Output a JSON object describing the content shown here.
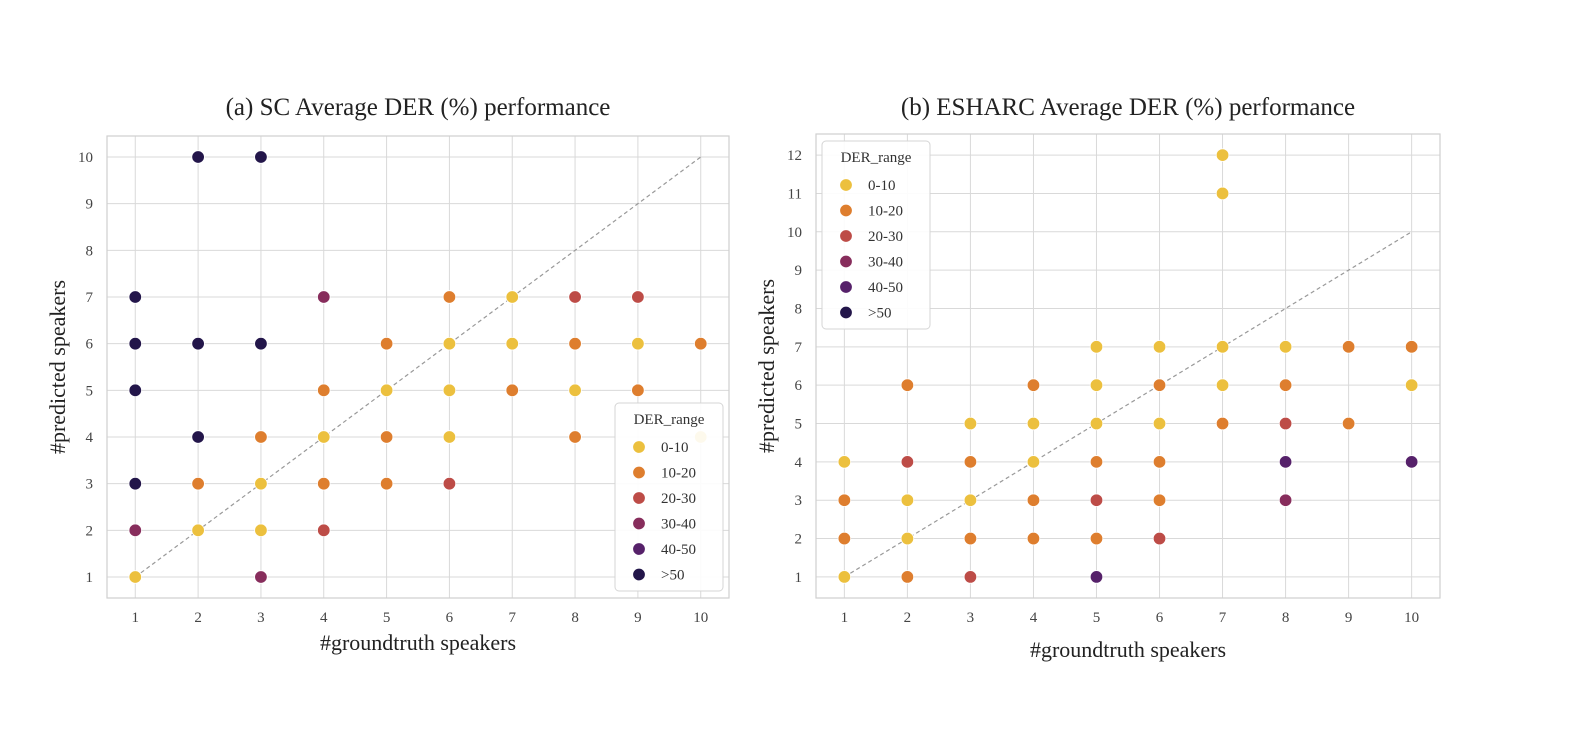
{
  "chart_data": [
    {
      "type": "scatter",
      "title": "(a) SC Average DER (%) performance",
      "xlabel": "#groundtruth speakers",
      "ylabel": "#predicted speakers",
      "x_ticks": [
        1,
        2,
        3,
        4,
        5,
        6,
        7,
        8,
        9,
        10
      ],
      "y_ticks": [
        1,
        2,
        3,
        4,
        5,
        6,
        7,
        8,
        9,
        10
      ],
      "xlim": [
        0.55,
        10.45
      ],
      "ylim": [
        0.55,
        10.45
      ],
      "grid": true,
      "reference_line": "y = x (dashed)",
      "legend": {
        "title": "DER_range",
        "placement": "lower-right"
      },
      "series": [
        {
          "name": "0-10",
          "points": [
            [
              1,
              1
            ],
            [
              2,
              2
            ],
            [
              3,
              2
            ],
            [
              3,
              3
            ],
            [
              4,
              4
            ],
            [
              5,
              5
            ],
            [
              6,
              4
            ],
            [
              6,
              5
            ],
            [
              6,
              6
            ],
            [
              7,
              6
            ],
            [
              7,
              7
            ],
            [
              8,
              5
            ],
            [
              9,
              6
            ],
            [
              10,
              4
            ]
          ]
        },
        {
          "name": "10-20",
          "points": [
            [
              2,
              3
            ],
            [
              3,
              4
            ],
            [
              4,
              3
            ],
            [
              4,
              5
            ],
            [
              5,
              3
            ],
            [
              5,
              4
            ],
            [
              5,
              6
            ],
            [
              6,
              7
            ],
            [
              7,
              5
            ],
            [
              8,
              4
            ],
            [
              8,
              6
            ],
            [
              9,
              5
            ],
            [
              10,
              6
            ]
          ]
        },
        {
          "name": "20-30",
          "points": [
            [
              4,
              2
            ],
            [
              6,
              3
            ],
            [
              8,
              7
            ],
            [
              9,
              7
            ]
          ]
        },
        {
          "name": "30-40",
          "points": [
            [
              1,
              2
            ],
            [
              3,
              1
            ],
            [
              4,
              7
            ]
          ]
        },
        {
          "name": "40-50",
          "points": []
        },
        {
          "name": ">50",
          "points": [
            [
              1,
              3
            ],
            [
              1,
              5
            ],
            [
              1,
              6
            ],
            [
              1,
              7
            ],
            [
              2,
              4
            ],
            [
              2,
              6
            ],
            [
              2,
              10
            ],
            [
              3,
              6
            ],
            [
              3,
              10
            ]
          ]
        }
      ]
    },
    {
      "type": "scatter",
      "title": "(b) ESHARC Average DER (%) performance",
      "xlabel": "#groundtruth speakers",
      "ylabel": "#predicted speakers",
      "x_ticks": [
        1,
        2,
        3,
        4,
        5,
        6,
        7,
        8,
        9,
        10
      ],
      "y_ticks": [
        1,
        2,
        3,
        4,
        5,
        6,
        7,
        8,
        9,
        10,
        11,
        12
      ],
      "xlim": [
        0.55,
        10.45
      ],
      "ylim": [
        0.45,
        12.55
      ],
      "grid": true,
      "reference_line": "y = x (dashed)",
      "legend": {
        "title": "DER_range",
        "placement": "top-left"
      },
      "series": [
        {
          "name": "0-10",
          "points": [
            [
              1,
              1
            ],
            [
              1,
              4
            ],
            [
              2,
              2
            ],
            [
              2,
              3
            ],
            [
              3,
              3
            ],
            [
              3,
              5
            ],
            [
              4,
              4
            ],
            [
              4,
              5
            ],
            [
              5,
              5
            ],
            [
              5,
              6
            ],
            [
              5,
              7
            ],
            [
              6,
              5
            ],
            [
              6,
              7
            ],
            [
              7,
              6
            ],
            [
              7,
              7
            ],
            [
              7,
              11
            ],
            [
              7,
              12
            ],
            [
              8,
              7
            ],
            [
              10,
              6
            ]
          ]
        },
        {
          "name": "10-20",
          "points": [
            [
              1,
              2
            ],
            [
              1,
              3
            ],
            [
              2,
              1
            ],
            [
              2,
              6
            ],
            [
              3,
              2
            ],
            [
              3,
              4
            ],
            [
              4,
              2
            ],
            [
              4,
              3
            ],
            [
              4,
              6
            ],
            [
              5,
              2
            ],
            [
              5,
              4
            ],
            [
              6,
              3
            ],
            [
              6,
              4
            ],
            [
              6,
              6
            ],
            [
              7,
              5
            ],
            [
              8,
              6
            ],
            [
              9,
              5
            ],
            [
              9,
              7
            ],
            [
              10,
              7
            ]
          ]
        },
        {
          "name": "20-30",
          "points": [
            [
              2,
              4
            ],
            [
              3,
              1
            ],
            [
              5,
              3
            ],
            [
              6,
              2
            ],
            [
              8,
              5
            ]
          ]
        },
        {
          "name": "30-40",
          "points": [
            [
              8,
              3
            ]
          ]
        },
        {
          "name": "40-50",
          "points": [
            [
              5,
              1
            ],
            [
              8,
              4
            ],
            [
              10,
              4
            ]
          ]
        },
        {
          "name": ">50",
          "points": []
        }
      ]
    }
  ],
  "colors": {
    "0-10": "#ecc03e",
    "10-20": "#de7e2e",
    "20-30": "#bd4c47",
    "30-40": "#872d5c",
    "40-50": "#56216a",
    ">50": "#23164a",
    "grid": "#d9d9d9",
    "frame": "#cfcfcf",
    "reference": "#999999"
  }
}
